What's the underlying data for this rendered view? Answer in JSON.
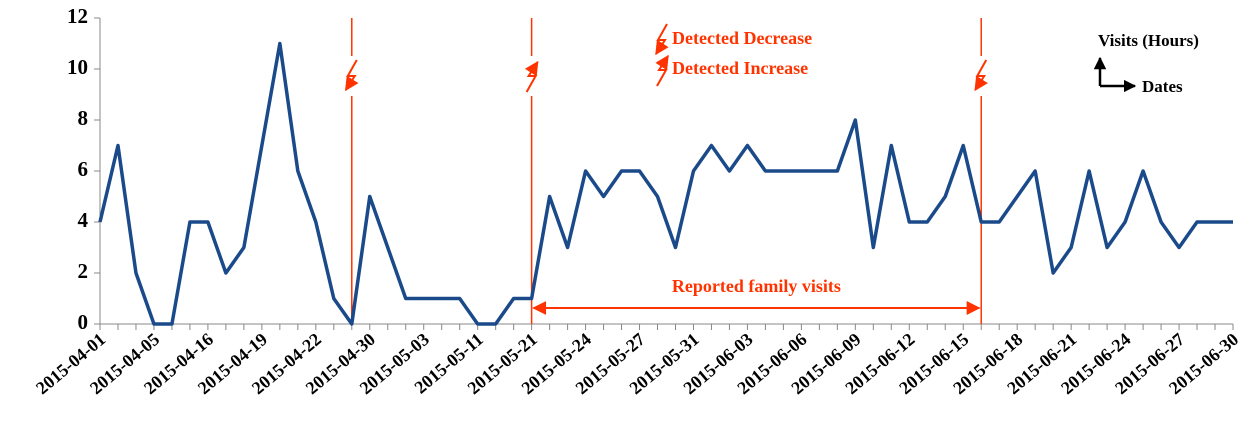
{
  "chart_data": {
    "type": "line",
    "categories": [
      "2015-04-01",
      null,
      null,
      "2015-04-05",
      null,
      null,
      "2015-04-16",
      null,
      null,
      "2015-04-19",
      null,
      null,
      "2015-04-22",
      null,
      null,
      "2015-04-30",
      null,
      null,
      "2015-05-03",
      null,
      null,
      "2015-05-11",
      null,
      null,
      "2015-05-21",
      null,
      null,
      "2015-05-24",
      null,
      null,
      "2015-05-27",
      null,
      null,
      "2015-05-31",
      null,
      null,
      "2015-06-03",
      null,
      null,
      "2015-06-06",
      null,
      null,
      "2015-06-09",
      null,
      null,
      "2015-06-12",
      null,
      null,
      "2015-06-15",
      null,
      null,
      "2015-06-18",
      null,
      null,
      "2015-06-21",
      null,
      null,
      "2015-06-24",
      null,
      null,
      "2015-06-27",
      null,
      null,
      "2015-06-30"
    ],
    "series": [
      {
        "color": "#1a4a8a",
        "values": [
          4,
          7,
          2,
          0,
          0,
          4,
          4,
          2,
          3,
          7,
          11,
          6,
          4,
          1,
          0,
          5,
          3,
          1,
          1,
          1,
          1,
          0,
          0,
          1,
          1,
          5,
          3,
          6,
          5,
          6,
          6,
          5,
          3,
          6,
          7,
          6,
          7,
          6,
          6,
          6,
          6,
          6,
          8,
          3,
          7,
          4,
          4,
          5,
          7,
          4,
          4,
          5,
          6,
          2,
          3,
          6,
          3,
          4,
          6,
          4,
          3,
          4,
          4,
          4
        ]
      }
    ],
    "ylim": [
      0,
      12
    ],
    "yticks": [
      0,
      2,
      4,
      6,
      8,
      10,
      12
    ],
    "event_color": "#ff3300",
    "events": [
      {
        "index": 14,
        "kind": "decrease"
      },
      {
        "index": 24,
        "kind": "increase"
      },
      {
        "index": 49,
        "kind": "decrease"
      }
    ],
    "event_legend": {
      "decrease": "Detected Decrease",
      "increase": "Detected Increase"
    },
    "span": {
      "label": "Reported family visits",
      "from": 24,
      "to": 49
    },
    "ylabel": "Visits (Hours)",
    "xlabel": "Dates"
  }
}
